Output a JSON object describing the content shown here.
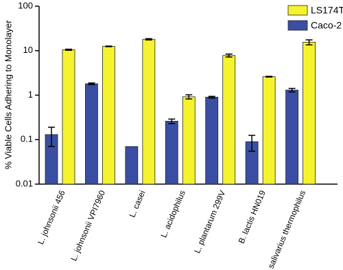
{
  "chart_data": {
    "type": "bar",
    "y_label": "% Viable Cells Adhering to Monolayer",
    "categories": [
      "L. johnsonii 456",
      "L. johnsonii VPI7960",
      "L. casei",
      "L. acidophilus",
      "L. plantarum 299V",
      "B. lactis HN019",
      "S. salivarius thermophilus"
    ],
    "series": [
      {
        "name": "Caco-2",
        "color": "#3a4fa3",
        "values": [
          0.13,
          1.8,
          0.07,
          0.26,
          0.9,
          0.09,
          1.3
        ],
        "errors": [
          0.06,
          0.08,
          0,
          0.03,
          0.04,
          0.035,
          0.12
        ]
      },
      {
        "name": "LS174T",
        "color": "#f5f22e",
        "values": [
          10.5,
          12.5,
          18,
          0.92,
          7.8,
          2.6,
          15.5
        ],
        "errors": [
          0.3,
          0.2,
          0.6,
          0.1,
          0.6,
          0.05,
          2
        ]
      }
    ],
    "ylim": [
      0.01,
      100
    ],
    "yticks": [
      0.01,
      0.1,
      1,
      10,
      100
    ],
    "log_y": true,
    "legend": "upper right",
    "legend_order": [
      1,
      0
    ]
  }
}
